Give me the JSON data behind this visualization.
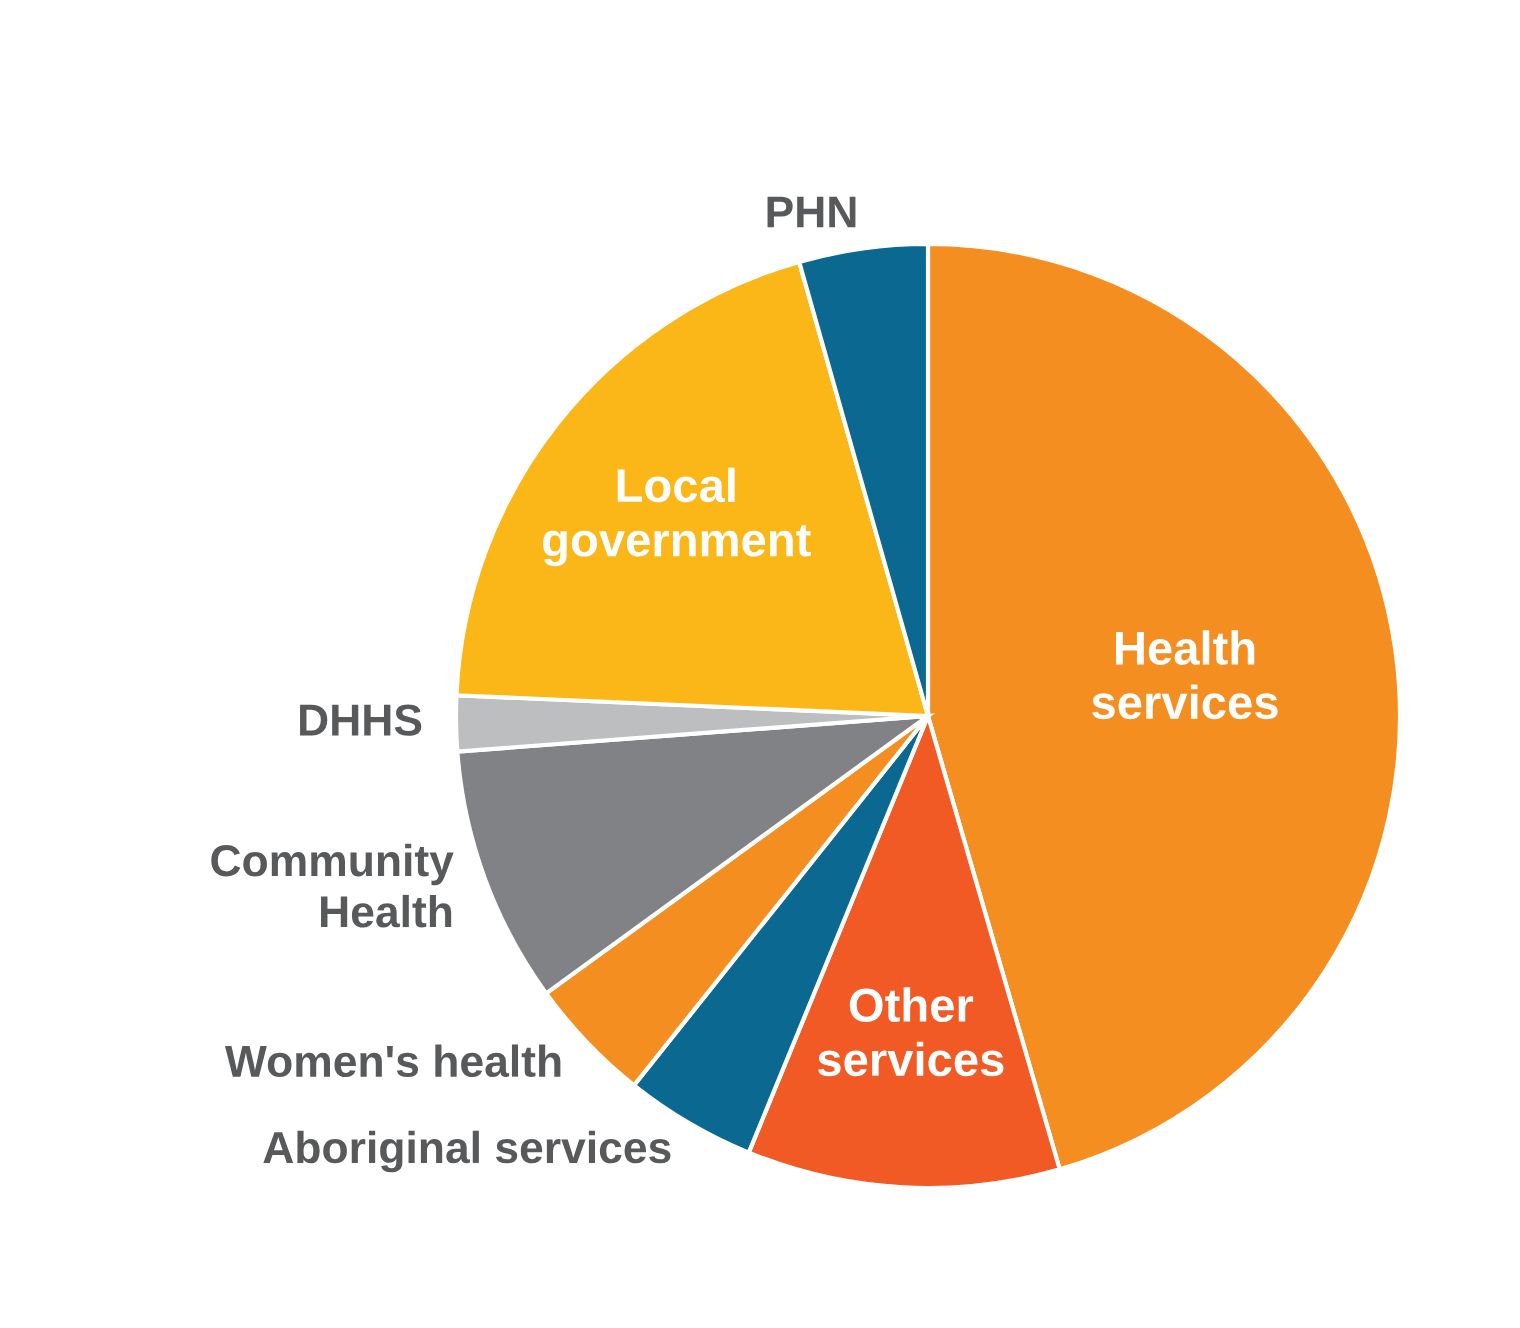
{
  "chart_data": {
    "type": "pie",
    "categories": [
      "Health\nservices",
      "Other\nservices",
      "Aboriginal services",
      "Women's health",
      "Community\nHealth",
      "DHHS",
      "Local\ngovernment",
      "PHN"
    ],
    "values": [
      45.5,
      10.7,
      4.5,
      4.3,
      8.8,
      1.9,
      19.9,
      4.4
    ],
    "colors": [
      "#f58e20",
      "#f15a24",
      "#0b6890",
      "#f58e20",
      "#808285",
      "#bcbec0",
      "#fbb718",
      "#0b6890"
    ]
  }
}
